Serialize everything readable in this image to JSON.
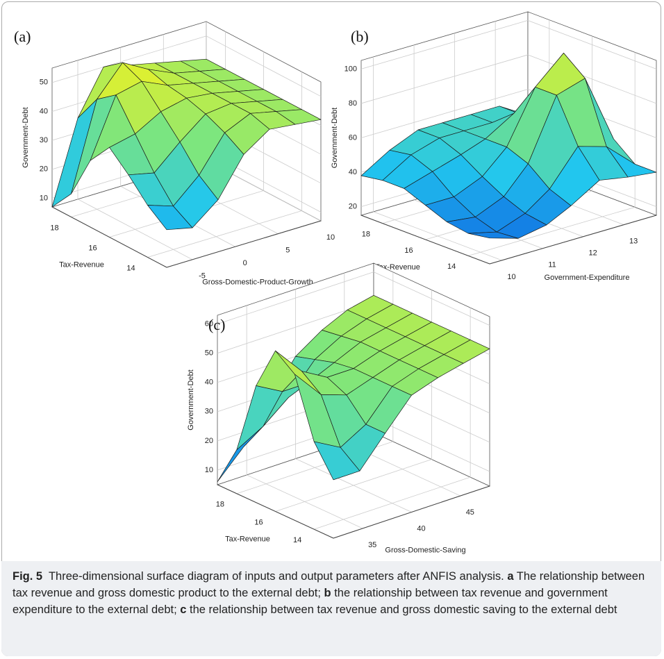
{
  "chart_data": [
    {
      "type": "surface",
      "panel": "(a)",
      "xlabel": "Gross-Domestic-Product-Growth",
      "ylabel": "Tax-Revenue",
      "zlabel": "Government-Debt",
      "xlim": [
        -8,
        10
      ],
      "ylim": [
        13,
        19
      ],
      "zlim": [
        7,
        55
      ],
      "xticks": [
        -5,
        0,
        5,
        10
      ],
      "yticks": [
        14,
        16,
        18
      ],
      "zticks": [
        10,
        20,
        30,
        40,
        50
      ],
      "x": [
        -8,
        -5,
        -2,
        1,
        4,
        7,
        10
      ],
      "y": [
        13,
        14,
        15,
        16,
        17,
        18,
        19
      ],
      "z": [
        [
          20,
          18,
          25,
          38,
          44,
          43,
          42
        ],
        [
          25,
          22,
          30,
          42,
          46,
          44,
          42
        ],
        [
          32,
          30,
          38,
          45,
          46,
          44,
          42
        ],
        [
          38,
          40,
          45,
          47,
          46,
          44,
          42
        ],
        [
          30,
          50,
          52,
          48,
          46,
          44,
          42
        ],
        [
          15,
          45,
          55,
          50,
          46,
          44,
          42
        ],
        [
          7,
          35,
          50,
          48,
          46,
          44,
          42
        ]
      ],
      "colormap": [
        "#0b55e0",
        "#22c6ee",
        "#7ee67c",
        "#f7f31c"
      ],
      "grid": true
    },
    {
      "type": "surface",
      "panel": "(b)",
      "xlabel": "Government-Expenditure",
      "ylabel": "Tax-Revenue",
      "zlabel": "Government-Debt",
      "xlim": [
        9.7,
        13.8
      ],
      "ylim": [
        13,
        19
      ],
      "zlim": [
        15,
        105
      ],
      "xticks": [
        10,
        11,
        12,
        13
      ],
      "yticks": [
        14,
        16,
        18
      ],
      "zticks": [
        20,
        40,
        60,
        80,
        100
      ],
      "x": [
        9.7,
        10.4,
        11.1,
        11.7,
        12.4,
        13.1,
        13.8
      ],
      "y": [
        13,
        14,
        15,
        16,
        17,
        18,
        19
      ],
      "z": [
        [
          30,
          25,
          28,
          35,
          45,
          42,
          40
        ],
        [
          28,
          24,
          30,
          40,
          60,
          55,
          40
        ],
        [
          30,
          28,
          35,
          50,
          85,
          90,
          50
        ],
        [
          35,
          35,
          42,
          55,
          85,
          100,
          55
        ],
        [
          40,
          45,
          50,
          55,
          65,
          70,
          50
        ],
        [
          40,
          50,
          55,
          55,
          55,
          55,
          45
        ],
        [
          38,
          48,
          55,
          55,
          55,
          55,
          45
        ]
      ],
      "colormap": [
        "#0b55e0",
        "#22c6ee",
        "#7ee67c",
        "#f7f31c"
      ],
      "grid": true
    },
    {
      "type": "surface",
      "panel": "(c)",
      "xlabel": "Gross-Domestic-Saving",
      "ylabel": "Tax-Revenue",
      "zlabel": "Government-Debt",
      "xlim": [
        32,
        48
      ],
      "ylim": [
        13,
        19
      ],
      "zlim": [
        5,
        63
      ],
      "xticks": [
        35,
        40,
        45
      ],
      "yticks": [
        14,
        16,
        18
      ],
      "zticks": [
        10,
        20,
        30,
        40,
        50,
        60
      ],
      "x": [
        32,
        34.7,
        37.3,
        40,
        42.7,
        45.3,
        48
      ],
      "y": [
        13,
        14,
        15,
        16,
        17,
        18,
        19
      ],
      "z": [
        [
          25,
          25,
          35,
          45,
          48,
          50,
          52
        ],
        [
          35,
          30,
          35,
          45,
          48,
          50,
          52
        ],
        [
          55,
          45,
          42,
          45,
          48,
          50,
          52
        ],
        [
          60,
          50,
          45,
          45,
          48,
          50,
          52
        ],
        [
          45,
          40,
          40,
          44,
          48,
          50,
          52
        ],
        [
          20,
          25,
          32,
          42,
          47,
          50,
          52
        ],
        [
          6,
          15,
          28,
          40,
          46,
          50,
          52
        ]
      ],
      "colormap": [
        "#0b55e0",
        "#22c6ee",
        "#7ee67c",
        "#f7f31c"
      ],
      "grid": true
    }
  ],
  "caption": {
    "label": "Fig. 5",
    "parts": [
      "Three-dimensional surface diagram of inputs and output parameters after ANFIS analysis. ",
      "a",
      " The relationship between tax revenue and gross domestic product to the external debt; ",
      "b",
      " the relationship between tax revenue and government expenditure to the external debt; ",
      "c",
      " the relationship between tax revenue and gross domestic saving to the external debt"
    ]
  }
}
